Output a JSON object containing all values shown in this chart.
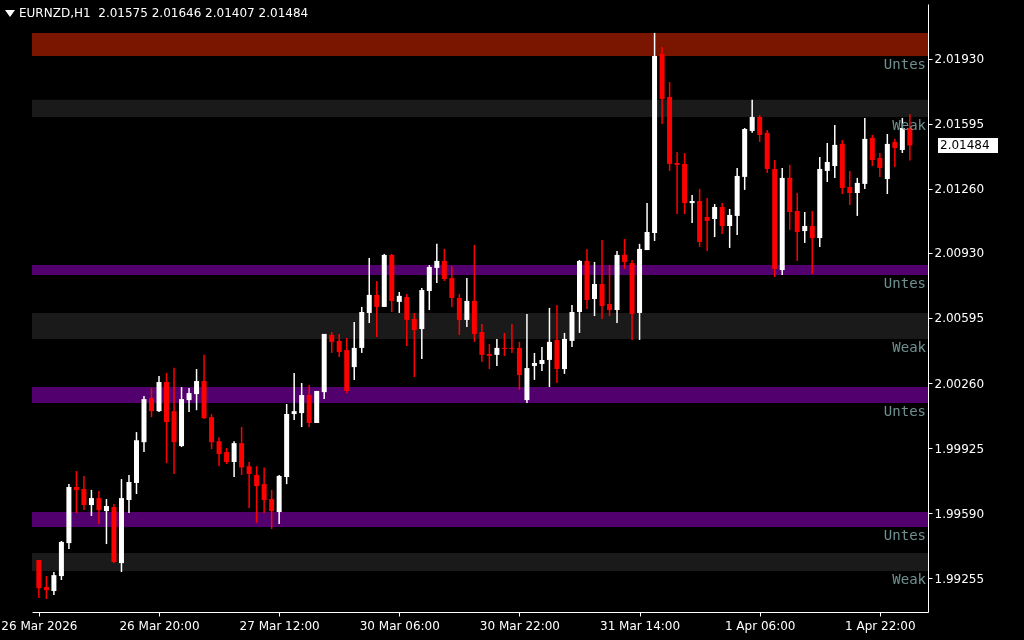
{
  "chart_data": {
    "type": "candlestick",
    "title": "EURNZD,H1  2.01575 2.01646 2.01407 2.01484",
    "categories": [
      "26 Mar 2026",
      null,
      null,
      null,
      null,
      null,
      null,
      null,
      null,
      null,
      null,
      null,
      null,
      null,
      null,
      null,
      "26 Mar 20:00",
      null,
      null,
      null,
      null,
      null,
      null,
      null,
      null,
      null,
      null,
      null,
      null,
      null,
      null,
      null,
      "27 Mar 12:00",
      null,
      null,
      null,
      null,
      null,
      null,
      null,
      null,
      null,
      null,
      null,
      null,
      null,
      null,
      null,
      "30 Mar 06:00",
      null,
      null,
      null,
      null,
      null,
      null,
      null,
      null,
      null,
      null,
      null,
      null,
      null,
      null,
      null,
      "30 Mar 22:00",
      null,
      null,
      null,
      null,
      null,
      null,
      null,
      null,
      null,
      null,
      null,
      null,
      null,
      null,
      null,
      "31 Mar 14:00",
      null,
      null,
      null,
      null,
      null,
      null,
      null,
      null,
      null,
      null,
      null,
      null,
      null,
      null,
      null,
      "1 Apr 06:00",
      null,
      null,
      null,
      null,
      null,
      null,
      null,
      null,
      null,
      null,
      null,
      null,
      null,
      null,
      null,
      "1 Apr 22:00",
      null,
      null,
      null,
      null
    ],
    "ohlc": [
      [
        1.99348,
        1.99348,
        1.99152,
        1.99203
      ],
      [
        1.99209,
        1.99265,
        1.99147,
        1.99193
      ],
      [
        1.99188,
        1.99286,
        1.99167,
        1.9927
      ],
      [
        1.99265,
        1.99446,
        1.99245,
        1.99441
      ],
      [
        1.99435,
        1.99739,
        1.99404,
        1.99724
      ],
      [
        1.99724,
        1.99806,
        1.9959,
        1.99709
      ],
      [
        1.99714,
        1.99781,
        1.99605,
        1.99631
      ],
      [
        1.99631,
        1.99709,
        1.99575,
        1.99667
      ],
      [
        1.99667,
        1.99704,
        1.99533,
        1.99605
      ],
      [
        1.996,
        1.99662,
        1.9943,
        1.99626
      ],
      [
        1.99621,
        1.99636,
        1.99332,
        1.99338
      ],
      [
        1.99332,
        1.99765,
        1.99286,
        1.99667
      ],
      [
        1.99657,
        1.99786,
        1.9959,
        1.9975
      ],
      [
        1.99745,
        2.00007,
        1.99688,
        1.99965
      ],
      [
        1.99955,
        2.00193,
        1.99904,
        2.00177
      ],
      [
        2.00182,
        2.00234,
        2.00084,
        2.00115
      ],
      [
        2.00115,
        2.00296,
        2.0011,
        2.00265
      ],
      [
        2.00265,
        2.00312,
        1.99847,
        2.00059
      ],
      [
        2.00115,
        2.00338,
        1.99791,
        1.99955
      ],
      [
        1.99935,
        2.00239,
        1.9993,
        2.00177
      ],
      [
        2.00172,
        2.00234,
        2.0011,
        2.00208
      ],
      [
        2.00203,
        2.00332,
        2.0012,
        2.0027
      ],
      [
        2.0027,
        2.00405,
        2.00074,
        2.00079
      ],
      [
        2.00084,
        2.001,
        1.99919,
        1.99955
      ],
      [
        1.9996,
        1.99981,
        1.99831,
        1.99894
      ],
      [
        1.99904,
        1.99925,
        1.99842,
        1.99853
      ],
      [
        1.99853,
        1.9996,
        1.99776,
        1.9995
      ],
      [
        1.9995,
        2.00033,
        1.99786,
        1.99825
      ],
      [
        1.99831,
        1.99853,
        1.99616,
        1.99791
      ],
      [
        1.99786,
        1.99831,
        1.99539,
        1.99729
      ],
      [
        1.99739,
        1.99825,
        1.9959,
        1.99657
      ],
      [
        1.99662,
        1.99709,
        1.99508,
        1.996
      ],
      [
        1.99595,
        1.99786,
        1.99533,
        1.99781
      ],
      [
        1.99776,
        2.00152,
        1.99739,
        2.001
      ],
      [
        2.001,
        2.00312,
        2.00069,
        2.00115
      ],
      [
        2.00105,
        2.0026,
        2.00033,
        2.00198
      ],
      [
        2.00198,
        2.0025,
        2.00033,
        2.00054
      ],
      [
        2.00054,
        2.00219,
        2.00054,
        2.00219
      ],
      [
        2.00213,
        2.00513,
        2.00177,
        2.00513
      ],
      [
        2.00508,
        2.00523,
        2.00415,
        2.00472
      ],
      [
        2.00477,
        2.00513,
        2.00394,
        2.0042
      ],
      [
        2.0043,
        2.00492,
        2.00208,
        2.00219
      ],
      [
        2.00342,
        2.00575,
        2.00276,
        2.00441
      ],
      [
        2.00441,
        2.00652,
        2.00415,
        2.00626
      ],
      [
        2.00621,
        2.00904,
        2.00569,
        2.00714
      ],
      [
        2.00714,
        2.00786,
        2.00497,
        2.00652
      ],
      [
        2.00652,
        2.00925,
        2.00652,
        2.0092
      ],
      [
        2.0092,
        2.00925,
        2.00626,
        2.00683
      ],
      [
        2.00678,
        2.00729,
        2.00621,
        2.00709
      ],
      [
        2.00703,
        2.00719,
        2.00451,
        2.00585
      ],
      [
        2.0059,
        2.00621,
        2.00291,
        2.00533
      ],
      [
        2.00538,
        2.0075,
        2.00384,
        2.00739
      ],
      [
        2.00734,
        2.00868,
        2.00636,
        2.00858
      ],
      [
        2.00853,
        2.00977,
        2.00775,
        2.00889
      ],
      [
        2.00889,
        2.00951,
        2.00786,
        2.00796
      ],
      [
        2.00801,
        2.00863,
        2.00652,
        2.00698
      ],
      [
        2.00698,
        2.00719,
        2.00508,
        2.00585
      ],
      [
        2.00585,
        2.00801,
        2.00549,
        2.00683
      ],
      [
        2.00683,
        2.00972,
        2.00472,
        2.00513
      ],
      [
        2.00523,
        2.00564,
        2.00369,
        2.00405
      ],
      [
        2.0041,
        2.00461,
        2.00332,
        2.00399
      ],
      [
        2.00405,
        2.00487,
        2.00348,
        2.00441
      ],
      [
        2.00441,
        2.00518,
        2.00399,
        2.00436
      ],
      [
        2.00441,
        2.00564,
        2.00415,
        2.00436
      ],
      [
        2.00441,
        2.00472,
        2.00224,
        2.00301
      ],
      [
        2.00172,
        2.00616,
        2.00157,
        2.00337
      ],
      [
        2.00348,
        2.00415,
        2.00276,
        2.00363
      ],
      [
        2.00358,
        2.00446,
        2.00322,
        2.00379
      ],
      [
        2.00379,
        2.00647,
        2.00239,
        2.00472
      ],
      [
        2.00482,
        2.00662,
        2.0026,
        2.00332
      ],
      [
        2.00332,
        2.00518,
        2.00307,
        2.00487
      ],
      [
        2.00477,
        2.00662,
        2.00446,
        2.00626
      ],
      [
        2.00626,
        2.00894,
        2.00518,
        2.00889
      ],
      [
        2.00889,
        2.00951,
        2.00641,
        2.00688
      ],
      [
        2.00693,
        2.00884,
        2.00605,
        2.0077
      ],
      [
        2.0077,
        2.00997,
        2.0059,
        2.00657
      ],
      [
        2.00667,
        2.00868,
        2.00605,
        2.00636
      ],
      [
        2.00636,
        2.0094,
        2.00569,
        2.0092
      ],
      [
        2.0092,
        2.01002,
        2.00848,
        2.00884
      ],
      [
        2.00878,
        2.00894,
        2.00482,
        2.00616
      ],
      [
        2.00621,
        2.00977,
        2.00482,
        2.00951
      ],
      [
        2.00945,
        2.01188,
        2.00945,
        2.01038
      ],
      [
        2.01033,
        2.02064,
        2.00992,
        2.01945
      ],
      [
        2.01956,
        2.01992,
        2.01595,
        2.01724
      ],
      [
        2.01734,
        2.01811,
        2.01353,
        2.01389
      ],
      [
        2.01394,
        2.01451,
        2.01131,
        2.01384
      ],
      [
        2.01389,
        2.01445,
        2.01131,
        2.01187
      ],
      [
        2.01187,
        2.01229,
        2.01085,
        2.01198
      ],
      [
        2.01198,
        2.0126,
        2.00961,
        2.00987
      ],
      [
        2.01116,
        2.01213,
        2.0094,
        2.01095
      ],
      [
        2.01105,
        2.01182,
        2.01012,
        2.01167
      ],
      [
        2.01167,
        2.01188,
        2.01028,
        2.01069
      ],
      [
        2.01069,
        2.01157,
        2.00956,
        2.01126
      ],
      [
        2.01121,
        2.01368,
        2.01023,
        2.01327
      ],
      [
        2.01322,
        2.01574,
        2.01255,
        2.01569
      ],
      [
        2.01559,
        2.01719,
        2.01549,
        2.01631
      ],
      [
        2.01631,
        2.01641,
        2.01502,
        2.01538
      ],
      [
        2.01549,
        2.01564,
        2.01342,
        2.01363
      ],
      [
        2.01363,
        2.01409,
        2.00806,
        2.00848
      ],
      [
        2.00842,
        2.01368,
        2.00817,
        2.01317
      ],
      [
        2.01317,
        2.01384,
        2.01049,
        2.01141
      ],
      [
        2.01146,
        2.01239,
        2.00889,
        2.01038
      ],
      [
        2.01043,
        2.01141,
        2.00982,
        2.01069
      ],
      [
        2.01069,
        2.01146,
        2.00822,
        2.01007
      ],
      [
        2.01007,
        2.01425,
        2.00961,
        2.01363
      ],
      [
        2.01353,
        2.01497,
        2.01296,
        2.01399
      ],
      [
        2.01378,
        2.0159,
        2.01317,
        2.01487
      ],
      [
        2.01492,
        2.01512,
        2.01234,
        2.01265
      ],
      [
        2.0127,
        2.01353,
        2.01177,
        2.01239
      ],
      [
        2.01239,
        2.01317,
        2.01121,
        2.01291
      ],
      [
        2.01286,
        2.01626,
        2.0126,
        2.01518
      ],
      [
        2.01523,
        2.01538,
        2.01378,
        2.01409
      ],
      [
        2.0142,
        2.01445,
        2.01322,
        2.01368
      ],
      [
        2.01311,
        2.01543,
        2.01234,
        2.01492
      ],
      [
        2.01502,
        2.01518,
        2.01373,
        2.01471
      ],
      [
        2.01461,
        2.01626,
        2.01445,
        2.01574
      ],
      [
        2.01575,
        2.01646,
        2.01407,
        2.01484
      ]
    ],
    "ylim": [
      1.9908,
      2.02213
    ],
    "yticks": [
      {
        "value": 1.99255,
        "label": "1.99255"
      },
      {
        "value": 1.9959,
        "label": "1.99590"
      },
      {
        "value": 1.99925,
        "label": "1.99925"
      },
      {
        "value": 2.0026,
        "label": "2.00260"
      },
      {
        "value": 2.00595,
        "label": "2.00595"
      },
      {
        "value": 2.0093,
        "label": "2.00930"
      },
      {
        "value": 2.0126,
        "label": "2.01260"
      },
      {
        "value": 2.01595,
        "label": "2.01595"
      },
      {
        "value": 2.0193,
        "label": "2.01930"
      }
    ],
    "bands": [
      {
        "axis": "y",
        "from": 2.01945,
        "to": 2.02064,
        "label": "Untes",
        "color": "#7a1500"
      },
      {
        "axis": "y",
        "from": 2.01631,
        "to": 2.01719,
        "label": "Weak",
        "color": "#1a1a1a"
      },
      {
        "axis": "y",
        "from": 2.00817,
        "to": 2.00868,
        "label": "Untes",
        "color": "#52006e"
      },
      {
        "axis": "y",
        "from": 2.00487,
        "to": 2.00621,
        "label": "Weak",
        "color": "#1a1a1a"
      },
      {
        "axis": "y",
        "from": 2.00157,
        "to": 2.00239,
        "label": "Untes",
        "color": "#52006e"
      },
      {
        "axis": "y",
        "from": 1.99518,
        "to": 1.99595,
        "label": "Untes",
        "color": "#52006e"
      },
      {
        "axis": "y",
        "from": 1.99291,
        "to": 1.99384,
        "label": "Weak",
        "color": "#1a1a1a"
      }
    ],
    "annotations": [
      "2.01484"
    ],
    "grid": false
  }
}
